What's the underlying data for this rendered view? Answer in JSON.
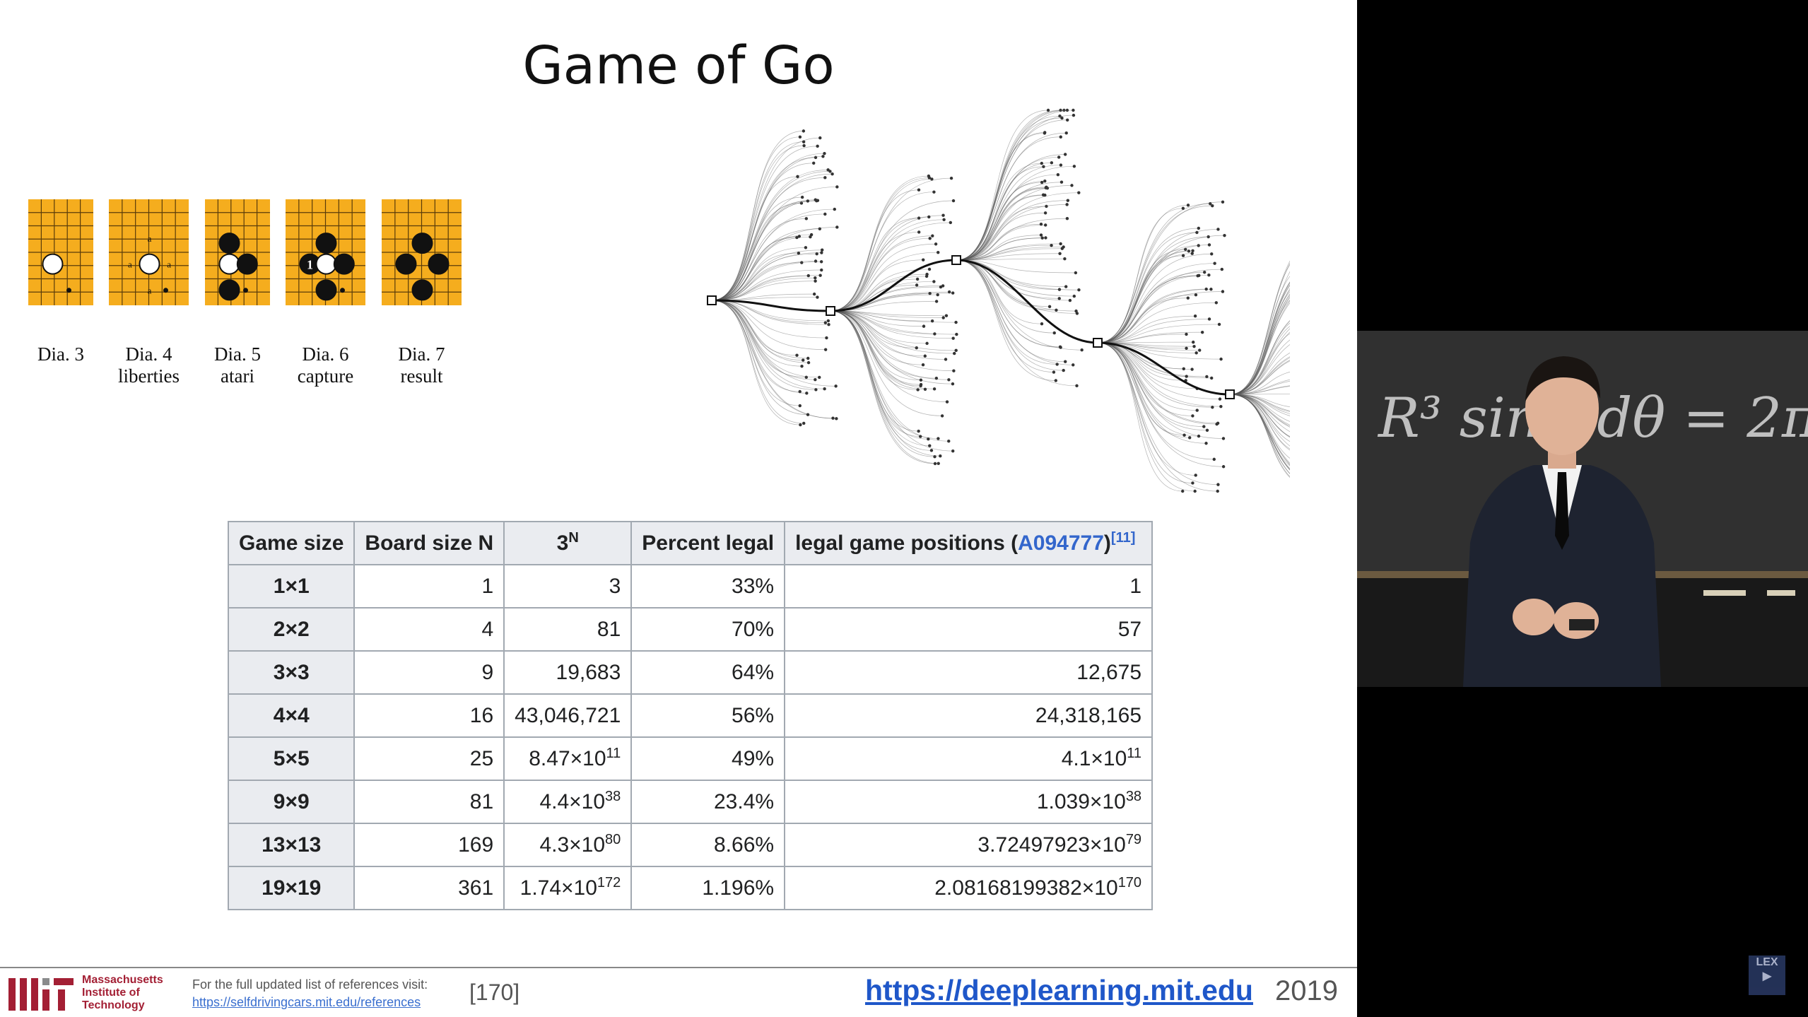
{
  "slide": {
    "title": "Game of Go",
    "diagrams": [
      {
        "label": "Dia. 3",
        "sublabel": ""
      },
      {
        "label": "Dia. 4",
        "sublabel": "liberties"
      },
      {
        "label": "Dia. 5",
        "sublabel": "atari"
      },
      {
        "label": "Dia. 6",
        "sublabel": "capture"
      },
      {
        "label": "Dia. 7",
        "sublabel": "result"
      }
    ],
    "board_colors": {
      "board": "#f5ad1e",
      "grid": "#5a3c0a"
    },
    "marker_letter": "a",
    "move_number": "1",
    "table": {
      "headers": {
        "game_size": "Game size",
        "board_size": "Board size N",
        "three_base": "3",
        "three_exp": "N",
        "percent": "Percent legal",
        "legal_prefix": "legal game positions (",
        "legal_link": "A094777",
        "legal_suffix": ")",
        "legal_ref": "[11]"
      },
      "rows": [
        {
          "size": "1×1",
          "n": "1",
          "three_base": "3",
          "three_exp": "",
          "percent": "33%",
          "legal_base": "1",
          "legal_exp": ""
        },
        {
          "size": "2×2",
          "n": "4",
          "three_base": "81",
          "three_exp": "",
          "percent": "70%",
          "legal_base": "57",
          "legal_exp": ""
        },
        {
          "size": "3×3",
          "n": "9",
          "three_base": "19,683",
          "three_exp": "",
          "percent": "64%",
          "legal_base": "12,675",
          "legal_exp": ""
        },
        {
          "size": "4×4",
          "n": "16",
          "three_base": "43,046,721",
          "three_exp": "",
          "percent": "56%",
          "legal_base": "24,318,165",
          "legal_exp": ""
        },
        {
          "size": "5×5",
          "n": "25",
          "three_base": "8.47×10",
          "three_exp": "11",
          "percent": "49%",
          "legal_base": "4.1×10",
          "legal_exp": "11"
        },
        {
          "size": "9×9",
          "n": "81",
          "three_base": "4.4×10",
          "three_exp": "38",
          "percent": "23.4%",
          "legal_base": "1.039×10",
          "legal_exp": "38"
        },
        {
          "size": "13×13",
          "n": "169",
          "three_base": "4.3×10",
          "three_exp": "80",
          "percent": "8.66%",
          "legal_base": "3.72497923×10",
          "legal_exp": "79"
        },
        {
          "size": "19×19",
          "n": "361",
          "three_base": "1.74×10",
          "three_exp": "172",
          "percent": "1.196%",
          "legal_base": "2.08168199382×10",
          "legal_exp": "170"
        }
      ]
    }
  },
  "footer": {
    "org_line1": "Massachusetts",
    "org_line2": "Institute of",
    "org_line3": "Technology",
    "refs_text": "For the full updated list of references visit:",
    "refs_link": "https://selfdrivingcars.mit.edu/references",
    "ref_num": "[170]",
    "site": "https://deeplearning.mit.edu",
    "year": "2019"
  },
  "video": {
    "board_text": "R³ sinφ dθ = 2π",
    "badge_line1": "LEX",
    "badge_line2": "▶"
  }
}
